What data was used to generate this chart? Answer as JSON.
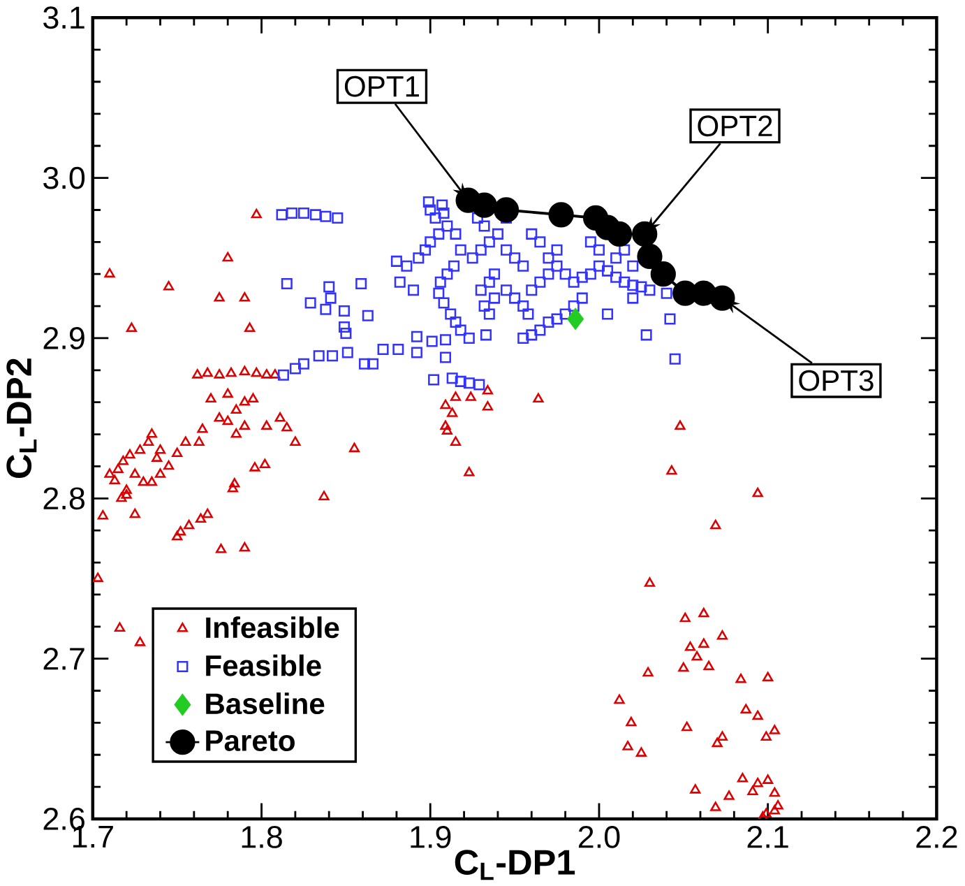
{
  "chart_data": {
    "type": "scatter",
    "xlabel": "C$_{L}$-DP1",
    "ylabel": "C$_{L}$-DP2",
    "xlim": [
      1.7,
      2.2
    ],
    "ylim": [
      2.6,
      3.1
    ],
    "xticks": [
      1.7,
      1.8,
      1.9,
      {
        "value": 2.0,
        "label": "2.0"
      },
      2.1,
      2.2
    ],
    "yticks": [
      2.6,
      2.7,
      2.8,
      2.9,
      {
        "value": 3.0,
        "label": "3.0"
      },
      3.1
    ],
    "grid": false,
    "legend": "bottom left",
    "series": [
      {
        "name": "Infeasible",
        "marker": "triangle",
        "color": "#dd0000",
        "x": [
          1.797,
          1.78,
          1.71,
          1.745,
          1.79,
          1.775,
          1.723,
          1.793,
          1.762,
          1.768,
          1.775,
          1.782,
          1.79,
          1.797,
          1.803,
          1.808,
          1.77,
          1.78,
          1.785,
          1.79,
          1.795,
          1.775,
          1.78,
          1.785,
          1.79,
          1.803,
          1.763,
          1.765,
          1.755,
          1.75,
          1.74,
          1.738,
          1.733,
          1.735,
          1.728,
          1.722,
          1.718,
          1.715,
          1.71,
          1.725,
          1.73,
          1.735,
          1.72,
          1.717,
          1.74,
          1.745,
          1.725,
          1.706,
          1.72,
          1.713,
          1.811,
          1.815,
          1.82,
          1.855,
          1.837,
          1.783,
          1.784,
          1.768,
          1.764,
          1.757,
          1.752,
          1.75,
          1.776,
          1.79,
          1.703,
          1.716,
          1.728,
          1.796,
          1.802,
          1.909,
          1.915,
          1.924,
          1.934,
          1.934,
          1.913,
          1.909,
          1.91,
          1.915,
          1.923,
          1.964,
          2.048,
          2.043,
          2.094,
          2.069,
          2.03,
          2.051,
          2.062,
          2.073,
          2.054,
          2.062,
          2.058,
          2.05,
          2.065,
          2.029,
          2.084,
          2.1,
          2.012,
          2.087,
          2.094,
          2.019,
          2.052,
          2.104,
          2.099,
          2.073,
          2.07,
          2.017,
          2.025,
          2.085,
          2.1,
          2.094,
          2.091,
          2.057,
          2.077,
          2.104,
          2.069,
          2.106,
          2.104,
          2.099,
          2.097
        ],
        "values": [
          2.977,
          2.95,
          2.94,
          2.932,
          2.925,
          2.925,
          2.906,
          2.906,
          2.877,
          2.878,
          2.877,
          2.878,
          2.879,
          2.878,
          2.877,
          2.877,
          2.862,
          2.865,
          2.855,
          2.86,
          2.862,
          2.85,
          2.848,
          2.84,
          2.845,
          2.845,
          2.835,
          2.843,
          2.835,
          2.828,
          2.83,
          2.825,
          2.835,
          2.84,
          2.83,
          2.827,
          2.823,
          2.818,
          2.815,
          2.815,
          2.81,
          2.81,
          2.805,
          2.8,
          2.815,
          2.82,
          2.79,
          2.789,
          2.802,
          2.811,
          2.85,
          2.844,
          2.835,
          2.831,
          2.801,
          2.806,
          2.809,
          2.79,
          2.787,
          2.783,
          2.779,
          2.776,
          2.768,
          2.769,
          2.75,
          2.719,
          2.71,
          2.819,
          2.821,
          2.858,
          2.863,
          2.863,
          2.867,
          2.857,
          2.853,
          2.845,
          2.842,
          2.835,
          2.816,
          2.862,
          2.845,
          2.817,
          2.803,
          2.783,
          2.747,
          2.725,
          2.728,
          2.714,
          2.707,
          2.709,
          2.701,
          2.694,
          2.695,
          2.691,
          2.687,
          2.688,
          2.674,
          2.668,
          2.664,
          2.66,
          2.657,
          2.655,
          2.651,
          2.651,
          2.647,
          2.645,
          2.641,
          2.625,
          2.624,
          2.622,
          2.617,
          2.618,
          2.614,
          2.616,
          2.607,
          2.608,
          2.605,
          2.603,
          2.601
        ]
      },
      {
        "name": "Feasible",
        "marker": "square",
        "color": "#3333ff",
        "x": [
          1.812,
          1.818,
          1.825,
          1.832,
          1.838,
          1.845,
          1.815,
          1.84,
          1.859,
          1.829,
          1.838,
          1.841,
          1.849,
          1.863,
          1.849,
          1.85,
          1.813,
          1.82,
          1.825,
          1.834,
          1.842,
          1.851,
          1.861,
          1.866,
          1.872,
          1.881,
          1.892,
          1.901,
          1.909,
          1.923,
          1.933,
          1.892,
          1.909,
          1.902,
          1.913,
          1.918,
          1.923,
          1.929,
          1.899,
          1.907,
          1.893,
          1.897,
          1.9,
          1.905,
          1.91,
          1.903,
          1.9,
          1.908,
          1.915,
          1.918,
          1.914,
          1.91,
          1.906,
          1.905,
          1.908,
          1.912,
          1.915,
          1.918,
          1.886,
          1.88,
          1.882,
          1.89,
          1.925,
          1.93,
          1.935,
          1.932,
          1.928,
          1.94,
          1.945,
          1.95,
          1.955,
          1.938,
          1.935,
          1.93,
          1.932,
          1.935,
          1.938,
          1.945,
          1.95,
          1.955,
          1.958,
          1.96,
          1.965,
          1.97,
          1.975,
          1.98,
          1.985,
          1.99,
          1.995,
          2.0,
          2.005,
          2.01,
          2.015,
          2.02,
          2.025,
          2.03,
          2.04,
          1.99,
          1.985,
          1.98,
          1.975,
          1.97,
          1.965,
          1.96,
          1.955,
          1.995,
          2.0,
          2.01,
          2.015,
          2.02,
          1.965,
          1.96,
          1.97,
          1.975,
          1.945,
          2.028,
          2.045,
          2.042,
          2.005,
          2.02
        ],
        "values": [
          2.977,
          2.978,
          2.978,
          2.977,
          2.976,
          2.975,
          2.934,
          2.932,
          2.934,
          2.922,
          2.918,
          2.925,
          2.917,
          2.914,
          2.907,
          2.903,
          2.877,
          2.881,
          2.884,
          2.889,
          2.889,
          2.891,
          2.884,
          2.884,
          2.893,
          2.893,
          2.891,
          2.898,
          2.899,
          2.9,
          2.902,
          2.901,
          2.888,
          2.874,
          2.875,
          2.873,
          2.872,
          2.871,
          2.985,
          2.983,
          2.95,
          2.955,
          2.96,
          2.965,
          2.97,
          2.975,
          2.98,
          2.978,
          2.965,
          2.955,
          2.945,
          2.94,
          2.935,
          2.928,
          2.922,
          2.915,
          2.91,
          2.905,
          2.945,
          2.948,
          2.935,
          2.93,
          2.95,
          2.955,
          2.96,
          2.97,
          2.975,
          2.965,
          2.955,
          2.95,
          2.945,
          2.94,
          2.935,
          2.93,
          2.92,
          2.915,
          2.925,
          2.93,
          2.925,
          2.92,
          2.915,
          2.93,
          2.935,
          2.94,
          2.945,
          2.94,
          2.935,
          2.938,
          2.94,
          2.945,
          2.942,
          2.938,
          2.935,
          2.933,
          2.932,
          2.93,
          2.928,
          2.925,
          2.92,
          2.915,
          2.912,
          2.91,
          2.905,
          2.902,
          2.9,
          2.96,
          2.955,
          2.95,
          2.955,
          2.945,
          2.96,
          2.965,
          2.95,
          2.955,
          2.975,
          2.902,
          2.887,
          2.912,
          2.915,
          2.925
        ]
      },
      {
        "name": "Baseline",
        "marker": "diamond",
        "color": "#22cc22",
        "x": [
          1.986
        ],
        "values": [
          2.912
        ]
      },
      {
        "name": "Pareto",
        "type": "line",
        "marker": "circle",
        "line_style": "solid",
        "color": "#000000",
        "x": [
          1.9225,
          1.932,
          1.945,
          1.9775,
          1.998,
          2.005,
          2.012,
          2.027,
          2.03,
          2.038,
          2.051,
          2.062,
          2.073
        ],
        "values": [
          2.986,
          2.983,
          2.98,
          2.977,
          2.975,
          2.969,
          2.965,
          2.965,
          2.951,
          2.94,
          2.928,
          2.928,
          2.925
        ]
      }
    ],
    "annotations": [
      {
        "text": "OPT1",
        "x": 1.9225,
        "y": 2.986
      },
      {
        "text": "OPT2",
        "x": 2.027,
        "y": 2.965
      },
      {
        "text": "OPT3",
        "x": 2.073,
        "y": 2.925
      }
    ]
  }
}
